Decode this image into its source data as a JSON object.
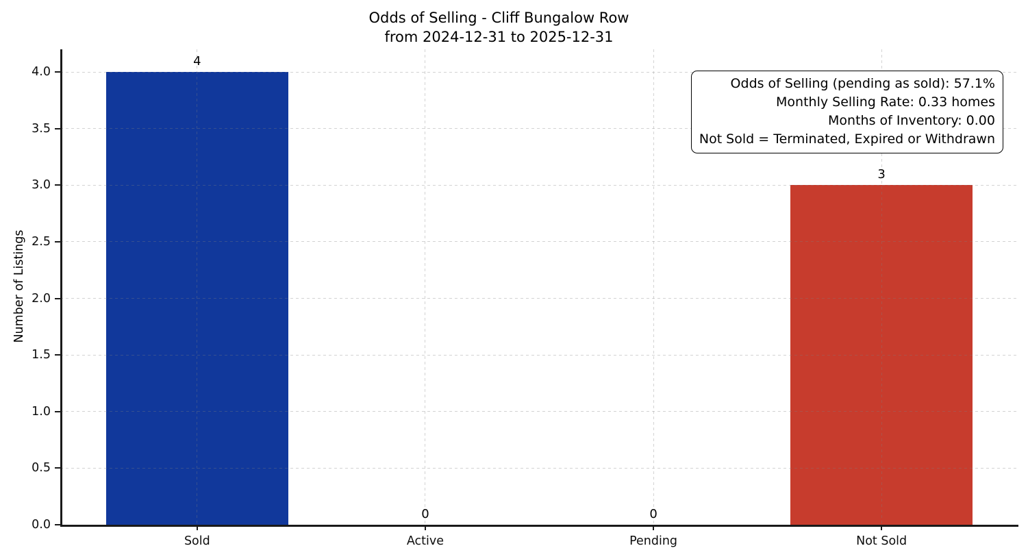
{
  "title": {
    "line1": "Odds of Selling - Cliff Bungalow Row",
    "line2": "from 2024-12-31 to 2025-12-31"
  },
  "annotation": {
    "lines": [
      "Odds of Selling (pending as sold): 57.1%",
      "Monthly Selling Rate: 0.33 homes",
      "Months of Inventory: 0.00",
      "Not Sold = Terminated, Expired or Withdrawn"
    ]
  },
  "chart_data": {
    "type": "bar",
    "title": "Odds of Selling - Cliff Bungalow Row\nfrom 2024-12-31 to 2025-12-31",
    "categories": [
      "Sold",
      "Active",
      "Pending",
      "Not Sold"
    ],
    "values": [
      4,
      0,
      0,
      3
    ],
    "value_labels": [
      "4",
      "0",
      "0",
      "3"
    ],
    "bar_colors": [
      "#11389b",
      null,
      null,
      "#c73c2d"
    ],
    "xlabel": "",
    "ylabel": "Number of Listings",
    "ylim": [
      0,
      4.2
    ],
    "xlim": [
      -0.6,
      3.6
    ],
    "bar_width_fraction": 0.8,
    "yticks": [
      0.0,
      0.5,
      1.0,
      1.5,
      2.0,
      2.5,
      3.0,
      3.5,
      4.0
    ],
    "ytick_labels": [
      "0.0",
      "0.5",
      "1.0",
      "1.5",
      "2.0",
      "2.5",
      "3.0",
      "3.5",
      "4.0"
    ],
    "grid": "dashed light-gray, horizontal at y-ticks and vertical at category centers, drawn over bars",
    "legend": "none",
    "annotation_box": {
      "position": "top-right",
      "lines": [
        "Odds of Selling (pending as sold): 57.1%",
        "Monthly Selling Rate: 0.33 homes",
        "Months of Inventory: 0.00",
        "Not Sold = Terminated, Expired or Withdrawn"
      ]
    },
    "colors": {
      "sold_bar": "#11389b",
      "not_sold_bar": "#c73c2d",
      "spine": "#1a1a1a",
      "background": "#ffffff",
      "text": "#000000"
    }
  }
}
